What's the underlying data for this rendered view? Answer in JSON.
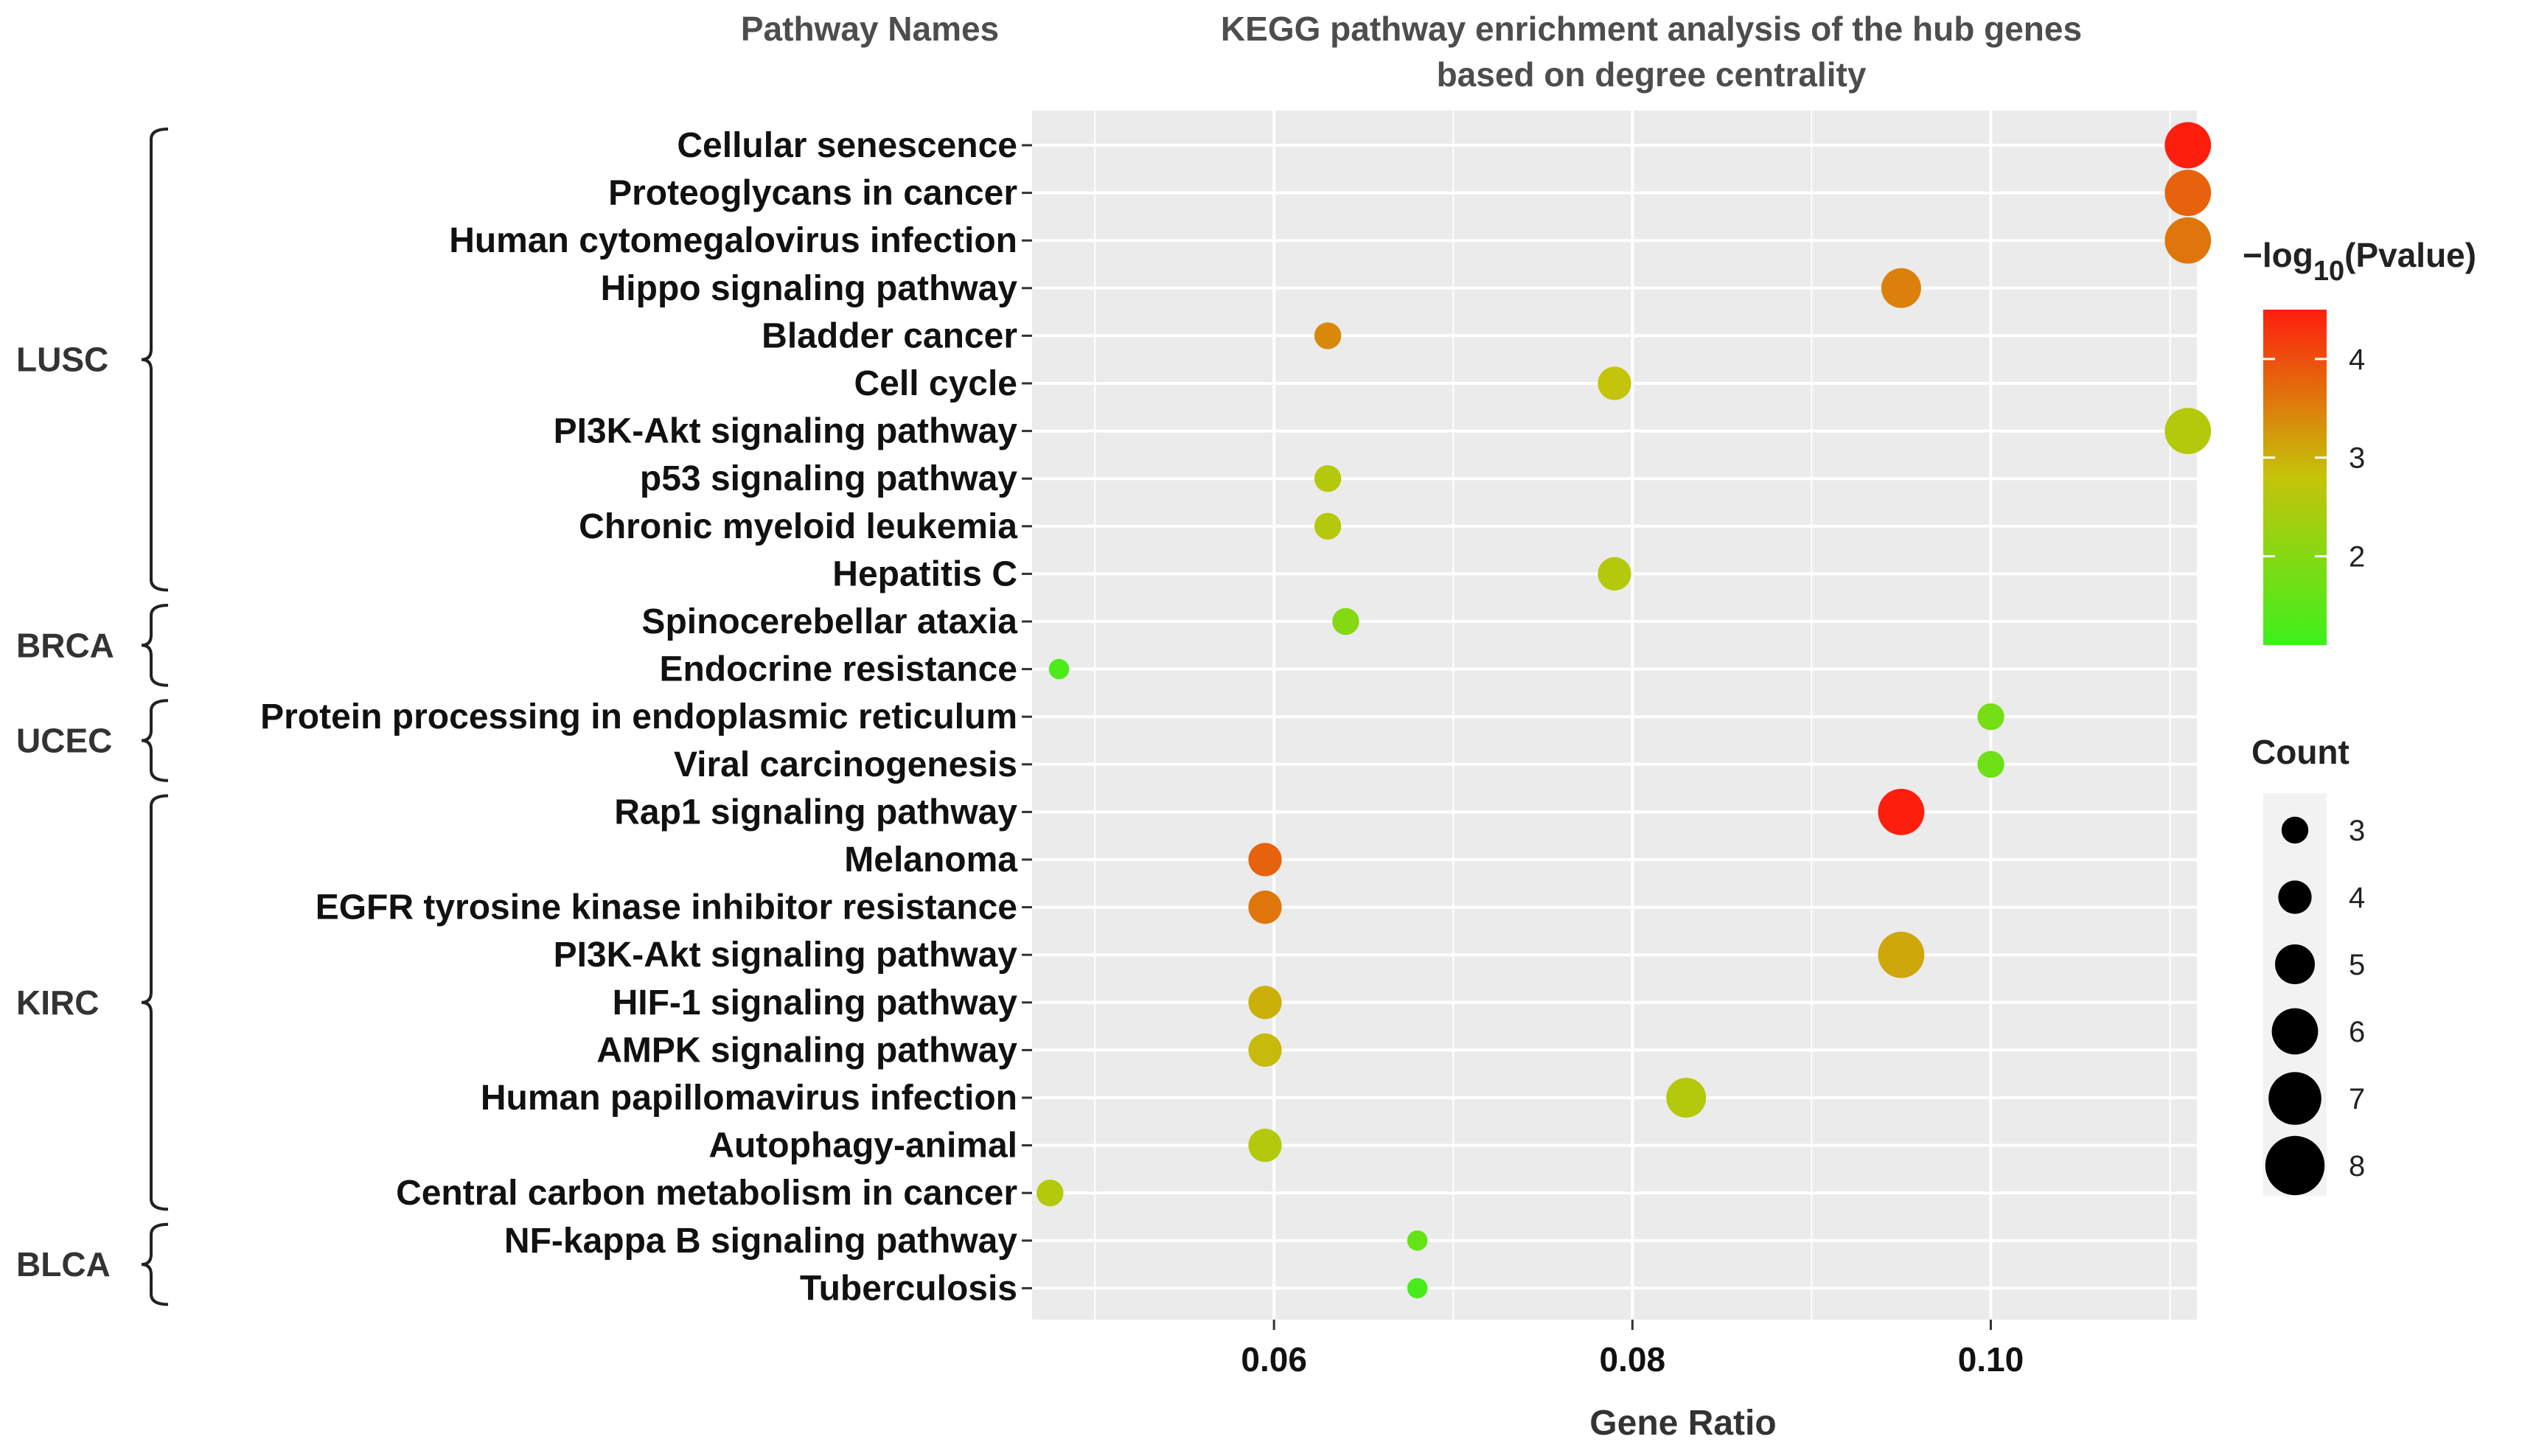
{
  "header": {
    "pathway_names": "Pathway Names",
    "title_line1": "KEGG pathway enrichment analysis of the hub genes",
    "title_line2": "based on degree centrality"
  },
  "chart_data": {
    "type": "scatter",
    "title": "KEGG pathway enrichment analysis of the hub genes based on degree centrality",
    "xlabel": "Gene Ratio",
    "ylabel": "Pathway Names",
    "xlim": [
      0.0465,
      0.1115
    ],
    "x_ticks": [
      0.06,
      0.08,
      0.1
    ],
    "x_tick_labels": [
      "0.06",
      "0.08",
      "0.10"
    ],
    "grid": true,
    "color_legend": {
      "title_main": "−log",
      "title_sub": "10",
      "title_rest": "(Pvalue)",
      "range": [
        1.1,
        4.5
      ],
      "ticks": [
        2,
        3,
        4
      ],
      "tick_labels": [
        "2",
        "3",
        "4"
      ],
      "low_color": "#3ef01c",
      "mid_color": "#c4c40a",
      "high_color": "#fe1e0e"
    },
    "size_legend": {
      "title": "Count",
      "values": [
        3,
        4,
        5,
        6,
        7,
        8
      ],
      "labels": [
        "3",
        "4",
        "5",
        "6",
        "7",
        "8"
      ]
    },
    "groups": [
      {
        "label": "LUSC",
        "first": 0,
        "last": 9
      },
      {
        "label": "BRCA",
        "first": 10,
        "last": 11
      },
      {
        "label": "UCEC",
        "first": 12,
        "last": 13
      },
      {
        "label": "KIRC",
        "first": 14,
        "last": 22
      },
      {
        "label": "BLCA",
        "first": 23,
        "last": 24
      }
    ],
    "points": [
      {
        "pathway": "Cellular senescence",
        "gene_ratio": 0.111,
        "count": 6,
        "neg_log10_p": 4.5
      },
      {
        "pathway": "Proteoglycans in cancer",
        "gene_ratio": 0.111,
        "count": 6,
        "neg_log10_p": 3.8
      },
      {
        "pathway": "Human cytomegalovirus infection",
        "gene_ratio": 0.111,
        "count": 6,
        "neg_log10_p": 3.6
      },
      {
        "pathway": "Hippo signaling pathway",
        "gene_ratio": 0.095,
        "count": 5,
        "neg_log10_p": 3.5
      },
      {
        "pathway": "Bladder cancer",
        "gene_ratio": 0.063,
        "count": 3,
        "neg_log10_p": 3.4
      },
      {
        "pathway": "Cell cycle",
        "gene_ratio": 0.079,
        "count": 4,
        "neg_log10_p": 2.8
      },
      {
        "pathway": "PI3K-Akt signaling pathway",
        "gene_ratio": 0.111,
        "count": 6,
        "neg_log10_p": 2.6
      },
      {
        "pathway": "p53 signaling pathway",
        "gene_ratio": 0.063,
        "count": 3,
        "neg_log10_p": 2.6
      },
      {
        "pathway": "Chronic myeloid leukemia",
        "gene_ratio": 0.063,
        "count": 3,
        "neg_log10_p": 2.6
      },
      {
        "pathway": "Hepatitis C",
        "gene_ratio": 0.079,
        "count": 4,
        "neg_log10_p": 2.6
      },
      {
        "pathway": "Spinocerebellar ataxia",
        "gene_ratio": 0.064,
        "count": 3,
        "neg_log10_p": 2.0
      },
      {
        "pathway": "Endocrine resistance",
        "gene_ratio": 0.048,
        "count": 2,
        "neg_log10_p": 1.3
      },
      {
        "pathway": "Protein processing in endoplasmic reticulum",
        "gene_ratio": 0.1,
        "count": 3,
        "neg_log10_p": 1.8
      },
      {
        "pathway": "Viral carcinogenesis",
        "gene_ratio": 0.1,
        "count": 3,
        "neg_log10_p": 1.7
      },
      {
        "pathway": "Rap1 signaling pathway",
        "gene_ratio": 0.095,
        "count": 6,
        "neg_log10_p": 4.5
      },
      {
        "pathway": "Melanoma",
        "gene_ratio": 0.0595,
        "count": 4,
        "neg_log10_p": 3.8
      },
      {
        "pathway": "EGFR tyrosine kinase inhibitor resistance",
        "gene_ratio": 0.0595,
        "count": 4,
        "neg_log10_p": 3.6
      },
      {
        "pathway": "PI3K-Akt signaling pathway",
        "gene_ratio": 0.095,
        "count": 6,
        "neg_log10_p": 3.1
      },
      {
        "pathway": "HIF-1 signaling pathway",
        "gene_ratio": 0.0595,
        "count": 4,
        "neg_log10_p": 3.0
      },
      {
        "pathway": "AMPK signaling pathway",
        "gene_ratio": 0.0595,
        "count": 4,
        "neg_log10_p": 2.9
      },
      {
        "pathway": "Human papillomavirus infection",
        "gene_ratio": 0.083,
        "count": 5,
        "neg_log10_p": 2.6
      },
      {
        "pathway": "Autophagy-animal",
        "gene_ratio": 0.0595,
        "count": 4,
        "neg_log10_p": 2.6
      },
      {
        "pathway": "Central carbon metabolism in cancer",
        "gene_ratio": 0.0475,
        "count": 3,
        "neg_log10_p": 2.6
      },
      {
        "pathway": "NF-kappa B signaling pathway",
        "gene_ratio": 0.068,
        "count": 2,
        "neg_log10_p": 1.6
      },
      {
        "pathway": "Tuberculosis",
        "gene_ratio": 0.068,
        "count": 2,
        "neg_log10_p": 1.2
      }
    ]
  }
}
